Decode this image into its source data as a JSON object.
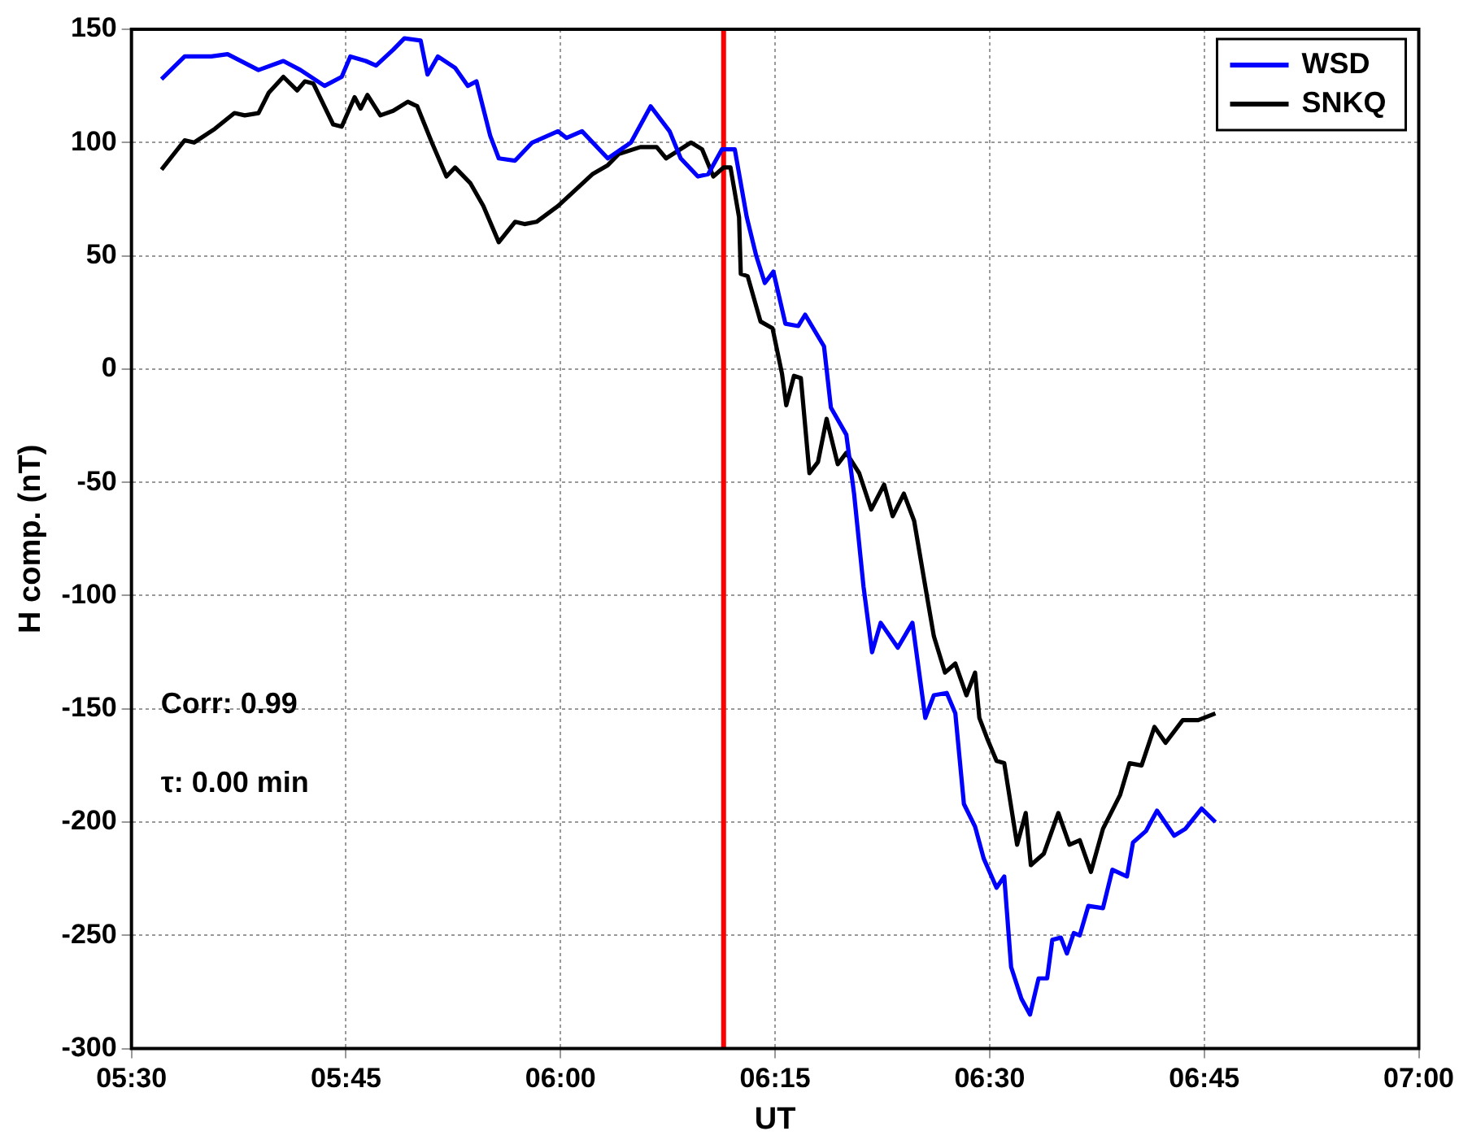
{
  "chart_data": {
    "type": "line",
    "xlabel": "UT",
    "ylabel": "H comp. (nT)",
    "xlim": [
      5.5,
      7
    ],
    "xticks": [
      {
        "value": 5.5,
        "label": "05:30"
      },
      {
        "value": 5.75,
        "label": "05:45"
      },
      {
        "value": 6,
        "label": "06:00"
      },
      {
        "value": 6.25,
        "label": "06:15"
      },
      {
        "value": 6.5,
        "label": "06:30"
      },
      {
        "value": 6.75,
        "label": "06:45"
      },
      {
        "value": 7,
        "label": "07:00"
      }
    ],
    "ylim": [
      -300,
      150
    ],
    "yticks": [
      -300,
      -250,
      -200,
      -150,
      -100,
      -50,
      0,
      50,
      100,
      150
    ],
    "grid": true,
    "legend": "top right",
    "line_style": "solid",
    "ref_lines": [
      {
        "axis": "x",
        "value": 6.19,
        "color": "#ff0000"
      }
    ],
    "annotations": [
      "Corr: 0.99",
      "τ: 0.00 min"
    ],
    "series": [
      {
        "name": "WSD",
        "color": "#0000ff",
        "x": [
          5.535,
          5.562,
          5.593,
          5.612,
          5.648,
          5.677,
          5.697,
          5.725,
          5.745,
          5.755,
          5.773,
          5.785,
          5.805,
          5.818,
          5.837,
          5.845,
          5.857,
          5.877,
          5.892,
          5.902,
          5.918,
          5.928,
          5.947,
          5.967,
          5.997,
          6.007,
          6.025,
          6.055,
          6.082,
          6.105,
          6.127,
          6.14,
          6.16,
          6.172,
          6.188,
          6.203,
          6.217,
          6.228,
          6.238,
          6.248,
          6.262,
          6.277,
          6.285,
          6.307,
          6.315,
          6.333,
          6.342,
          6.353,
          6.363,
          6.373,
          6.393,
          6.41,
          6.425,
          6.435,
          6.45,
          6.46,
          6.47,
          6.483,
          6.493,
          6.508,
          6.517,
          6.525,
          6.537,
          6.547,
          6.557,
          6.567,
          6.573,
          6.583,
          6.59,
          6.598,
          6.605,
          6.615,
          6.632,
          6.643,
          6.66,
          6.667,
          6.682,
          6.695,
          6.715,
          6.728,
          6.747,
          6.763
        ],
        "values": [
          128,
          138,
          138,
          139,
          132,
          136,
          132,
          125,
          129,
          138,
          136,
          134,
          141,
          146,
          145,
          130,
          138,
          133,
          125,
          127,
          103,
          93,
          92,
          100,
          105,
          102,
          105,
          93,
          100,
          116,
          105,
          93,
          85,
          86,
          97,
          97,
          67,
          50,
          38,
          43,
          20,
          19,
          24,
          10,
          -17,
          -29,
          -55,
          -96,
          -125,
          -112,
          -123,
          -112,
          -154,
          -144,
          -143,
          -152,
          -192,
          -202,
          -216,
          -229,
          -224,
          -264,
          -278,
          -285,
          -269,
          -269,
          -252,
          -251,
          -258,
          -249,
          -250,
          -237,
          -238,
          -221,
          -224,
          -209,
          -204,
          -195,
          -206,
          -203,
          -194,
          -200
        ]
      },
      {
        "name": "SNKQ",
        "color": "#000000",
        "x": [
          5.535,
          5.562,
          5.573,
          5.597,
          5.62,
          5.632,
          5.648,
          5.66,
          5.677,
          5.693,
          5.702,
          5.712,
          5.735,
          5.745,
          5.76,
          5.767,
          5.775,
          5.79,
          5.805,
          5.822,
          5.833,
          5.85,
          5.867,
          5.877,
          5.895,
          5.91,
          5.928,
          5.947,
          5.958,
          5.972,
          5.997,
          6.017,
          6.037,
          6.055,
          6.068,
          6.093,
          6.112,
          6.123,
          6.152,
          6.165,
          6.178,
          6.19,
          6.198,
          6.208,
          6.21,
          6.218,
          6.233,
          6.247,
          6.258,
          6.263,
          6.272,
          6.28,
          6.29,
          6.3,
          6.31,
          6.323,
          6.333,
          6.348,
          6.362,
          6.377,
          6.387,
          6.4,
          6.412,
          6.425,
          6.435,
          6.448,
          6.46,
          6.473,
          6.483,
          6.488,
          6.497,
          6.508,
          6.517,
          6.532,
          6.542,
          6.548,
          6.563,
          6.58,
          6.593,
          6.605,
          6.618,
          6.632,
          6.652,
          6.663,
          6.677,
          6.692,
          6.705,
          6.725,
          6.743,
          6.763
        ],
        "values": [
          88,
          101,
          100,
          106,
          113,
          112,
          113,
          122,
          129,
          123,
          127,
          126,
          108,
          107,
          120,
          115,
          121,
          112,
          114,
          118,
          116,
          100,
          85,
          89,
          82,
          72,
          56,
          65,
          64,
          65,
          72,
          79,
          86,
          90,
          95,
          98,
          98,
          93,
          100,
          97,
          85,
          89,
          89,
          67,
          42,
          41,
          21,
          18,
          -2,
          -16,
          -3,
          -4,
          -46,
          -41,
          -22,
          -42,
          -37,
          -46,
          -62,
          -51,
          -65,
          -55,
          -67,
          -96,
          -118,
          -134,
          -130,
          -144,
          -134,
          -154,
          -163,
          -173,
          -174,
          -210,
          -196,
          -219,
          -214,
          -196,
          -210,
          -208,
          -222,
          -203,
          -188,
          -174,
          -175,
          -158,
          -165,
          -155,
          -155,
          -152
        ]
      }
    ]
  }
}
